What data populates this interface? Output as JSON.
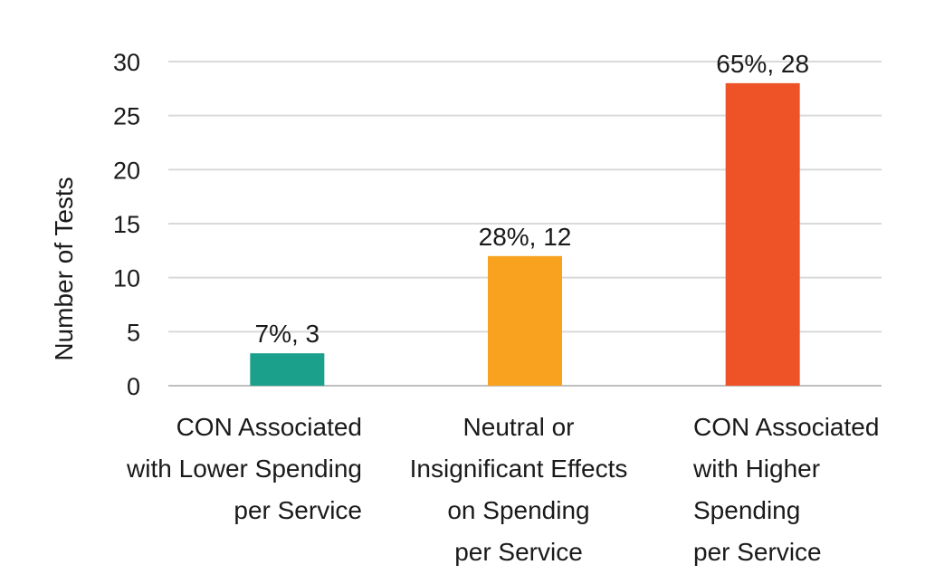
{
  "chart_data": {
    "type": "bar",
    "title": "",
    "xlabel": "",
    "ylabel": "Number of Tests",
    "ylim": [
      0,
      30
    ],
    "yticks": [
      0,
      5,
      10,
      15,
      20,
      25,
      30
    ],
    "grid": true,
    "legend": "none",
    "categories": [
      [
        "CON Associated",
        "with Lower Spending",
        "per Service"
      ],
      [
        "Neutral or",
        "Insignificant Effects",
        "on Spending",
        "per Service"
      ],
      [
        "CON Associated",
        "with Higher",
        "Spending",
        "per Service"
      ]
    ],
    "values": [
      3,
      12,
      28
    ],
    "data_labels": [
      "7%, 3",
      "28%, 12",
      "65%, 28"
    ],
    "colors": [
      "#1ba08c",
      "#f8a21f",
      "#ee5328"
    ]
  }
}
